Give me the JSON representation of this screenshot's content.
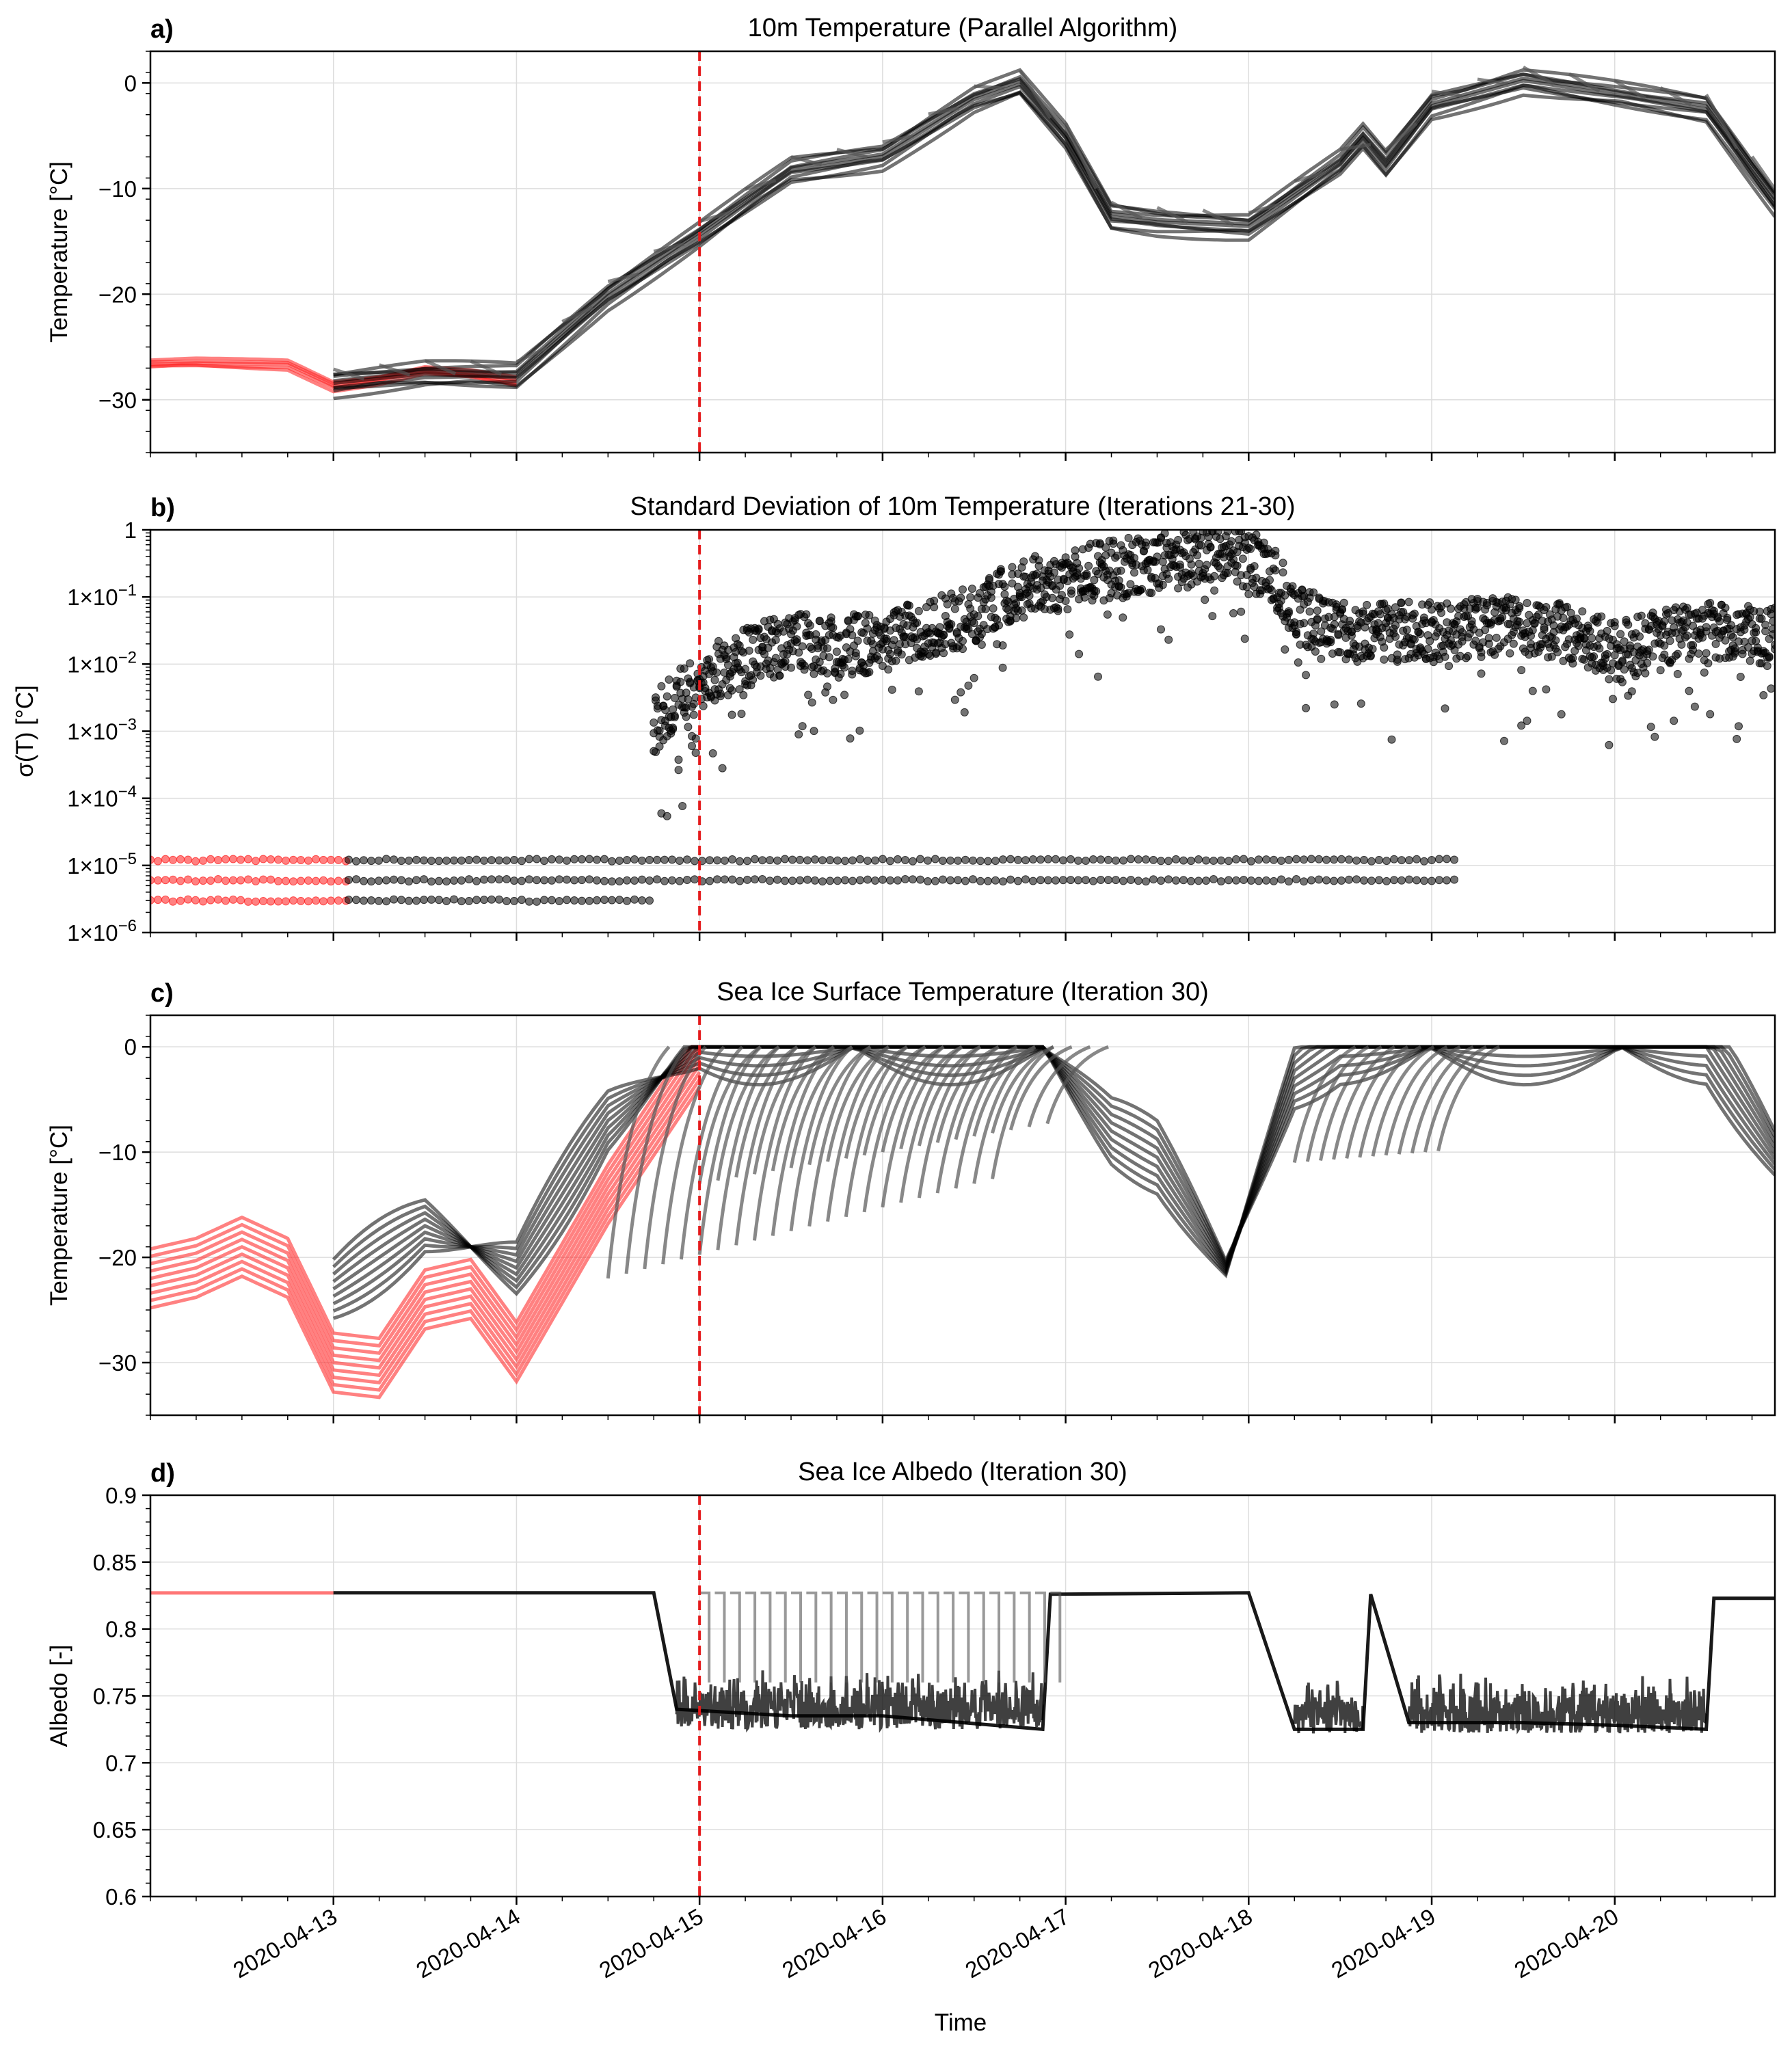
{
  "figure": {
    "xlabel": "Time",
    "date_tick_labels": [
      "2020-04-13",
      "2020-04-14",
      "2020-04-15",
      "2020-04-16",
      "2020-04-17",
      "2020-04-18",
      "2020-04-19",
      "2020-04-20"
    ],
    "marker_line_date": "2020-04-15",
    "colors": {
      "spinup": "#ff1a1a",
      "main": "#000000",
      "vline": "#e41a1c",
      "grid": "#dddddd"
    }
  },
  "chart_data": [
    {
      "type": "line",
      "panel_label": "a)",
      "title": "10m Temperature (Parallel Algorithm)",
      "ylabel": "Temperature [°C]",
      "xlim": [
        "2020-04-12 00:00",
        "2020-04-20 21:00"
      ],
      "ylim": [
        -35,
        3
      ],
      "yticks": [
        0,
        -10,
        -20,
        -30
      ],
      "ytick_labels": [
        "0",
        "−10",
        "−20",
        "−30"
      ],
      "series": [
        {
          "color": "#ff1a1a",
          "x": [
            "2020-04-12 00:00",
            "2020-04-12 06:00",
            "2020-04-12 12:00",
            "2020-04-12 18:00",
            "2020-04-13 00:00",
            "2020-04-13 06:00",
            "2020-04-13 12:00",
            "2020-04-13 18:00",
            "2020-04-14 00:00"
          ],
          "y": [
            -26.5,
            -26.4,
            -26.5,
            -26.6,
            -28.6,
            -28.0,
            -27.1,
            -27.5,
            -28.2
          ]
        },
        {
          "color": "#000000",
          "x": [
            "2020-04-13 00:00",
            "2020-04-13 12:00",
            "2020-04-14 00:00",
            "2020-04-14 12:00",
            "2020-04-15 00:00",
            "2020-04-15 12:00",
            "2020-04-16 00:00",
            "2020-04-16 12:00",
            "2020-04-16 18:00",
            "2020-04-17 00:00",
            "2020-04-17 06:00",
            "2020-04-17 12:00",
            "2020-04-18 00:00",
            "2020-04-18 12:00",
            "2020-04-18 15:00",
            "2020-04-18 18:00",
            "2020-04-19 00:00",
            "2020-04-19 12:00",
            "2020-04-20 00:00",
            "2020-04-20 12:00",
            "2020-04-20 21:00"
          ],
          "y": [
            -28.3,
            -27.5,
            -27.6,
            -20.0,
            -14.3,
            -8.2,
            -6.8,
            -1.5,
            0.0,
            -5.0,
            -12.5,
            -13.0,
            -13.5,
            -7.5,
            -5.0,
            -7.5,
            -2.0,
            0.3,
            -1.0,
            -2.3,
            -11.1
          ]
        }
      ]
    },
    {
      "type": "scatter",
      "panel_label": "b)",
      "title": "Standard Deviation of 10m Temperature (Iterations 21-30)",
      "ylabel": "σ(T) [°C]",
      "yscale": "log",
      "ylim": [
        1e-06,
        1
      ],
      "yticks": [
        1,
        0.1,
        0.01,
        0.001,
        0.0001,
        1e-05,
        1e-06
      ],
      "ytick_labels": [
        {
          "base": "1",
          "exp": ""
        },
        {
          "base": "1×10",
          "exp": "−1"
        },
        {
          "base": "1×10",
          "exp": "−2"
        },
        {
          "base": "1×10",
          "exp": "−3"
        },
        {
          "base": "1×10",
          "exp": "−4"
        },
        {
          "base": "1×10",
          "exp": "−5"
        },
        {
          "base": "1×10",
          "exp": "−6"
        }
      ],
      "series": [
        {
          "color": "#ff1a1a",
          "x": [
            "2020-04-12 00:00",
            "2020-04-12 06:00",
            "2020-04-12 12:00",
            "2020-04-12 18:00",
            "2020-04-13 00:00"
          ],
          "y": [
            1.2e-05,
            6e-06,
            3e-06,
            1.2e-05,
            6e-06
          ]
        },
        {
          "color": "#000000",
          "x": [
            "2020-04-13 00:00",
            "2020-04-14 00:00",
            "2020-04-15 00:00",
            "2020-04-16 00:00",
            "2020-04-17 00:00",
            "2020-04-18 00:00",
            "2020-04-19 00:00",
            "2020-04-19 03:00"
          ],
          "y": [
            1.2e-05,
            6e-06,
            1.2e-05,
            6e-06,
            1.2e-05,
            6e-06,
            1.2e-05,
            6e-06
          ]
        },
        {
          "color": "#000000",
          "x": [
            "2020-04-14 18:00",
            "2020-04-15 00:00",
            "2020-04-15 12:00",
            "2020-04-16 00:00",
            "2020-04-16 12:00",
            "2020-04-17 00:00",
            "2020-04-17 12:00",
            "2020-04-17 21:00",
            "2020-04-18 06:00",
            "2020-04-18 12:00",
            "2020-04-19 00:00",
            "2020-04-19 12:00",
            "2020-04-20 00:00",
            "2020-04-20 12:00",
            "2020-04-20 21:00"
          ],
          "y": [
            0.001,
            0.005,
            0.02,
            0.02,
            0.05,
            0.2,
            0.3,
            0.5,
            0.05,
            0.03,
            0.03,
            0.04,
            0.015,
            0.03,
            0.025
          ]
        }
      ]
    },
    {
      "type": "line",
      "panel_label": "c)",
      "title": "Sea Ice Surface Temperature (Iteration 30)",
      "ylabel": "Temperature [°C]",
      "ylim": [
        -35,
        3
      ],
      "yticks": [
        0,
        -10,
        -20,
        -30
      ],
      "ytick_labels": [
        "0",
        "−10",
        "−20",
        "−30"
      ],
      "series": [
        {
          "color": "#ff1a1a",
          "x": [
            "2020-04-12 00:00",
            "2020-04-12 06:00",
            "2020-04-12 12:00",
            "2020-04-12 18:00",
            "2020-04-13 00:00",
            "2020-04-13 06:00",
            "2020-04-13 12:00",
            "2020-04-13 18:00",
            "2020-04-14 00:00",
            "2020-04-14 12:00",
            "2020-04-15 00:00"
          ],
          "y": [
            -22.0,
            -21.0,
            -19.0,
            -21.0,
            -30.0,
            -30.5,
            -24.0,
            -23.0,
            -29.0,
            -14.0,
            -1.0
          ]
        },
        {
          "color": "#000000",
          "x": [
            "2020-04-13 00:00",
            "2020-04-13 12:00",
            "2020-04-14 00:00",
            "2020-04-14 12:00",
            "2020-04-15 00:00",
            "2020-04-16 00:00",
            "2020-04-16 21:00",
            "2020-04-17 06:00",
            "2020-04-17 12:00",
            "2020-04-17 21:00",
            "2020-04-18 06:00",
            "2020-04-18 12:00",
            "2020-04-19 00:00",
            "2020-04-20 00:00",
            "2020-04-20 12:00",
            "2020-04-20 21:00"
          ],
          "y": [
            -23.0,
            -17.0,
            -21.0,
            -7.0,
            0.0,
            0.0,
            0.0,
            -8.0,
            -10.5,
            -21.0,
            -3.0,
            0.0,
            0.0,
            0.0,
            0.0,
            -10.1
          ]
        }
      ]
    },
    {
      "type": "line",
      "panel_label": "d)",
      "title": "Sea Ice Albedo (Iteration 30)",
      "ylabel": "Albedo [-]",
      "ylim": [
        0.6,
        0.9
      ],
      "yticks": [
        0.9,
        0.85,
        0.8,
        0.75,
        0.7,
        0.65,
        0.6
      ],
      "ytick_labels": [
        "0.9",
        "0.85",
        "0.8",
        "0.75",
        "0.7",
        "0.65",
        "0.6"
      ],
      "series": [
        {
          "color": "#ff1a1a",
          "x": [
            "2020-04-12 00:00",
            "2020-04-13 00:00"
          ],
          "y": [
            0.827,
            0.827
          ]
        },
        {
          "color": "#000000",
          "x": [
            "2020-04-13 00:00",
            "2020-04-14 18:00",
            "2020-04-14 21:00",
            "2020-04-15 12:00",
            "2020-04-16 00:00",
            "2020-04-16 21:00",
            "2020-04-16 22:00",
            "2020-04-18 00:00",
            "2020-04-18 06:00",
            "2020-04-18 15:00",
            "2020-04-18 16:00",
            "2020-04-18 21:00",
            "2020-04-19 12:00",
            "2020-04-20 00:00",
            "2020-04-20 12:00",
            "2020-04-20 13:00",
            "2020-04-20 21:00"
          ],
          "y": [
            0.827,
            0.827,
            0.74,
            0.735,
            0.735,
            0.725,
            0.826,
            0.827,
            0.725,
            0.725,
            0.826,
            0.73,
            0.73,
            0.728,
            0.725,
            0.823,
            0.823
          ]
        }
      ]
    }
  ]
}
